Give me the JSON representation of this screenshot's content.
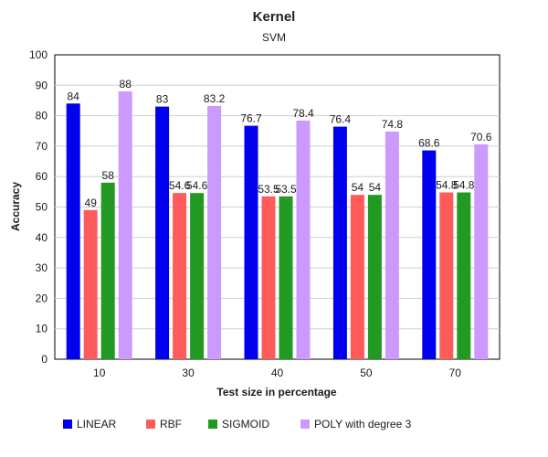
{
  "chart_data": {
    "type": "bar",
    "title": "Kernel",
    "subtitle": "SVM",
    "xlabel": "Test size  in percentage",
    "ylabel": "Accuracy",
    "ylim": [
      0,
      100
    ],
    "yticks": [
      0,
      10,
      20,
      30,
      40,
      50,
      60,
      70,
      80,
      90,
      100
    ],
    "grid": true,
    "legend_position": "bottom",
    "categories": [
      "10",
      "30",
      "40",
      "50",
      "70"
    ],
    "series": [
      {
        "name": "LINEAR",
        "color": "#0000ee",
        "values": [
          84,
          83,
          76.7,
          76.4,
          68.6
        ]
      },
      {
        "name": "RBF",
        "color": "#ff5b5b",
        "values": [
          49,
          54.6,
          53.5,
          54,
          54.8
        ]
      },
      {
        "name": "SIGMOID",
        "color": "#229922",
        "values": [
          58,
          54.6,
          53.5,
          54,
          54.8
        ]
      },
      {
        "name": "POLY with degree 3",
        "color": "#cc99ff",
        "values": [
          88,
          83.2,
          78.4,
          74.8,
          70.6
        ]
      }
    ]
  }
}
